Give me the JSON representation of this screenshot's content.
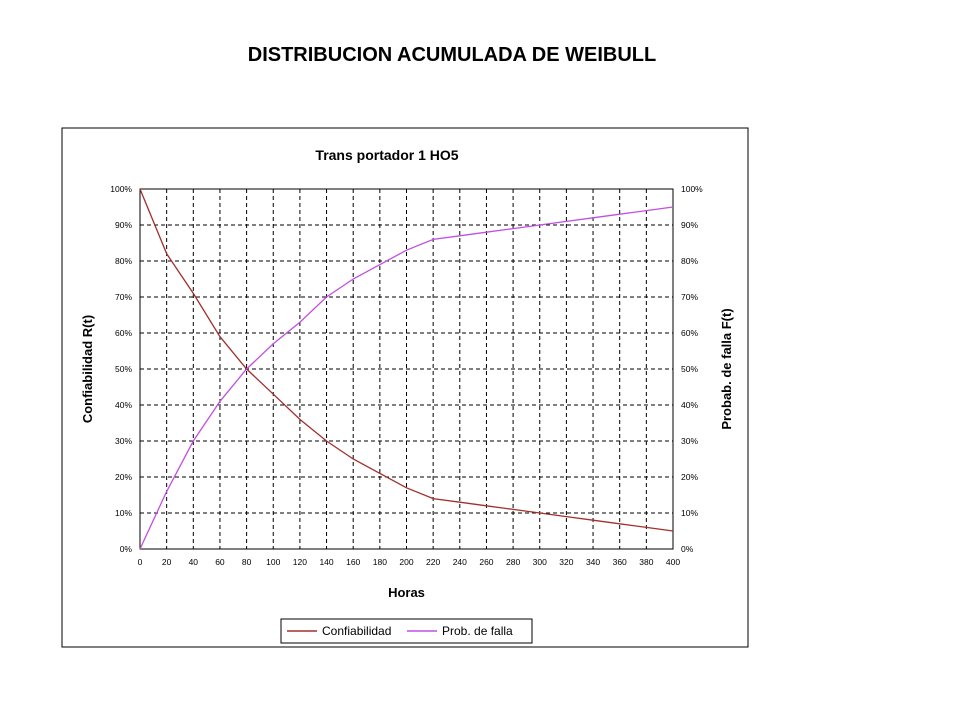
{
  "page": {
    "title": "DISTRIBUCION ACUMULADA DE WEIBULL"
  },
  "chart_data": {
    "type": "line",
    "title": "Trans portador 1 HO5",
    "xlabel": "Horas",
    "ylabel": "Confiabilidad R(t)",
    "y2label": "Probab. de falla F(t)",
    "xlim": [
      0,
      400
    ],
    "ylim": [
      0,
      1
    ],
    "x_ticks": [
      "0",
      "20",
      "40",
      "60",
      "80",
      "100",
      "120",
      "140",
      "160",
      "180",
      "200",
      "220",
      "240",
      "260",
      "280",
      "300",
      "320",
      "340",
      "360",
      "380",
      "400"
    ],
    "y_ticks": [
      "0%",
      "10%",
      "20%",
      "30%",
      "40%",
      "50%",
      "60%",
      "70%",
      "80%",
      "90%",
      "100%"
    ],
    "grid": true,
    "legend_position": "bottom",
    "x": [
      0,
      20,
      40,
      60,
      80,
      100,
      120,
      140,
      160,
      180,
      200,
      220,
      240,
      260,
      280,
      300,
      320,
      340,
      360,
      380,
      400
    ],
    "series": [
      {
        "name": "Confiabilidad",
        "color": "#a0302e",
        "values": [
          1.0,
          0.82,
          0.71,
          0.59,
          0.5,
          0.43,
          0.36,
          0.3,
          0.25,
          0.21,
          0.17,
          0.14,
          0.13,
          0.12,
          0.11,
          0.1,
          0.09,
          0.08,
          0.07,
          0.06,
          0.05
        ]
      },
      {
        "name": "Prob. de falla",
        "color": "#c050e0",
        "values": [
          0.0,
          0.16,
          0.3,
          0.41,
          0.5,
          0.57,
          0.63,
          0.7,
          0.75,
          0.79,
          0.83,
          0.86,
          0.87,
          0.88,
          0.89,
          0.9,
          0.91,
          0.92,
          0.93,
          0.94,
          0.95
        ]
      }
    ]
  }
}
